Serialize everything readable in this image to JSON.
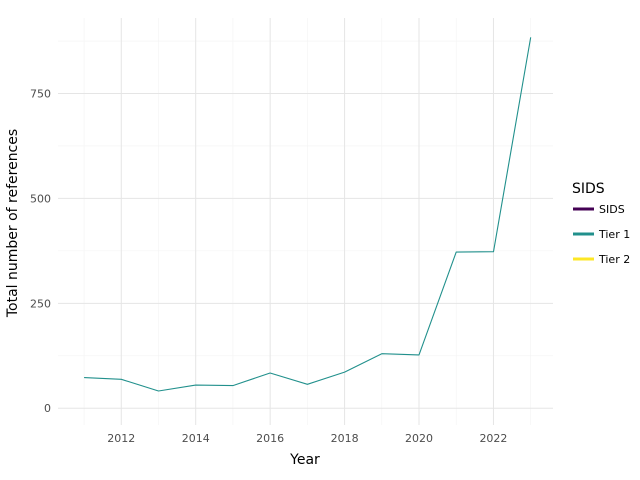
{
  "chart_data": {
    "type": "line",
    "xlabel": "Year",
    "ylabel": "Total number of references",
    "xlim": [
      2010.3,
      2023.6
    ],
    "ylim": [
      -40,
      930
    ],
    "x_ticks": [
      2012,
      2014,
      2016,
      2018,
      2020,
      2022
    ],
    "x_tick_labels": [
      "2012",
      "2014",
      "2016",
      "2018",
      "2020",
      "2022"
    ],
    "y_ticks": [
      0,
      250,
      500,
      750
    ],
    "y_tick_labels": [
      "0",
      "250",
      "500",
      "750"
    ],
    "grid": true,
    "legend": {
      "title": "SIDS",
      "position": "right",
      "entries": [
        {
          "label": "SIDS",
          "color": "#440154"
        },
        {
          "label": "Tier 1",
          "color": "#21908C"
        },
        {
          "label": "Tier 2",
          "color": "#FDE725"
        }
      ]
    },
    "series": [
      {
        "name": "Tier 1",
        "color": "#21908C",
        "x": [
          2011,
          2012,
          2013,
          2014,
          2015,
          2016,
          2017,
          2018,
          2019,
          2020,
          2021,
          2022,
          2023
        ],
        "values": [
          73,
          69,
          41,
          55,
          54,
          84,
          57,
          86,
          130,
          127,
          372,
          373,
          884
        ]
      }
    ]
  }
}
